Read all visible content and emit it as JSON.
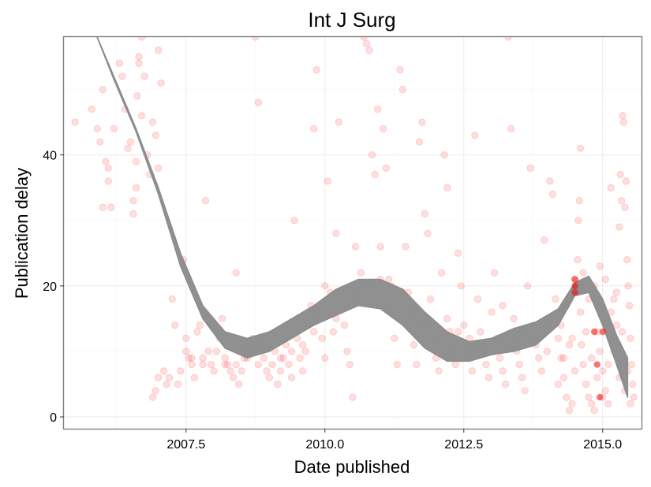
{
  "chart_data": {
    "type": "scatter",
    "title": "Int J Surg",
    "xlabel": "Date published",
    "ylabel": "Publication delay",
    "xlim": [
      2005.3,
      2015.7
    ],
    "ylim": [
      -1.8,
      58
    ],
    "x_ticks": [
      2007.5,
      2010.0,
      2012.5,
      2015.0
    ],
    "x_tick_labels": [
      "2007.5",
      "2010.0",
      "2012.5",
      "2015.0"
    ],
    "y_ticks": [
      0,
      20,
      40
    ],
    "y_tick_labels": [
      "0",
      "20",
      "40"
    ],
    "grid": true,
    "legend": "none",
    "point_color": "#ff0000",
    "point_alpha": 0.13,
    "ribbon_color": "#8c8c8c",
    "points": [
      [
        2005.5,
        45
      ],
      [
        2005.8,
        47
      ],
      [
        2005.9,
        44
      ],
      [
        2005.95,
        42
      ],
      [
        2006.0,
        50
      ],
      [
        2006.0,
        32
      ],
      [
        2006.05,
        39
      ],
      [
        2006.1,
        38
      ],
      [
        2006.1,
        36
      ],
      [
        2006.15,
        32
      ],
      [
        2006.2,
        44
      ],
      [
        2006.3,
        54
      ],
      [
        2006.35,
        52
      ],
      [
        2006.4,
        47
      ],
      [
        2006.45,
        41
      ],
      [
        2006.5,
        42
      ],
      [
        2006.55,
        33
      ],
      [
        2006.55,
        31
      ],
      [
        2006.6,
        35
      ],
      [
        2006.6,
        39
      ],
      [
        2006.62,
        49
      ],
      [
        2006.65,
        55
      ],
      [
        2006.65,
        54
      ],
      [
        2006.7,
        58
      ],
      [
        2006.7,
        46
      ],
      [
        2006.75,
        52
      ],
      [
        2006.8,
        40
      ],
      [
        2006.85,
        37
      ],
      [
        2006.9,
        45
      ],
      [
        2006.95,
        43
      ],
      [
        2007.0,
        38
      ],
      [
        2007.0,
        56
      ],
      [
        2007.05,
        51
      ],
      [
        2006.9,
        3
      ],
      [
        2006.95,
        4
      ],
      [
        2007.0,
        6
      ],
      [
        2007.1,
        7
      ],
      [
        2007.15,
        5
      ],
      [
        2007.2,
        6
      ],
      [
        2007.25,
        18
      ],
      [
        2007.3,
        14
      ],
      [
        2007.35,
        5
      ],
      [
        2007.4,
        7
      ],
      [
        2007.45,
        24
      ],
      [
        2007.5,
        10
      ],
      [
        2007.5,
        12
      ],
      [
        2007.55,
        9
      ],
      [
        2007.6,
        8
      ],
      [
        2007.65,
        6
      ],
      [
        2007.7,
        13
      ],
      [
        2007.75,
        14
      ],
      [
        2007.8,
        9
      ],
      [
        2007.85,
        33
      ],
      [
        2007.9,
        10
      ],
      [
        2007.95,
        8
      ],
      [
        2008.0,
        7
      ],
      [
        2008.05,
        10
      ],
      [
        2008.1,
        12
      ],
      [
        2008.15,
        15
      ],
      [
        2008.2,
        9
      ],
      [
        2008.25,
        8
      ],
      [
        2008.3,
        7
      ],
      [
        2008.35,
        6
      ],
      [
        2008.4,
        22
      ],
      [
        2008.45,
        5
      ],
      [
        2008.5,
        7
      ],
      [
        2008.55,
        9
      ],
      [
        2008.6,
        11
      ],
      [
        2008.65,
        10
      ],
      [
        2008.7,
        12
      ],
      [
        2008.75,
        58
      ],
      [
        2008.8,
        48
      ],
      [
        2008.85,
        11
      ],
      [
        2008.9,
        9
      ],
      [
        2008.95,
        7
      ],
      [
        2009.0,
        6
      ],
      [
        2009.05,
        8
      ],
      [
        2009.1,
        10
      ],
      [
        2009.15,
        5
      ],
      [
        2009.2,
        7
      ],
      [
        2009.25,
        9
      ],
      [
        2009.3,
        11
      ],
      [
        2009.35,
        8
      ],
      [
        2009.4,
        6
      ],
      [
        2009.45,
        30
      ],
      [
        2009.5,
        12
      ],
      [
        2009.55,
        9
      ],
      [
        2009.6,
        7
      ],
      [
        2009.65,
        10
      ],
      [
        2009.7,
        14
      ],
      [
        2009.75,
        17
      ],
      [
        2009.8,
        44
      ],
      [
        2009.85,
        53
      ],
      [
        2009.9,
        16
      ],
      [
        2009.95,
        12
      ],
      [
        2010.0,
        9
      ],
      [
        2010.0,
        20
      ],
      [
        2010.05,
        36
      ],
      [
        2010.1,
        19
      ],
      [
        2010.15,
        13
      ],
      [
        2010.2,
        28
      ],
      [
        2010.25,
        45
      ],
      [
        2010.3,
        19
      ],
      [
        2010.35,
        14
      ],
      [
        2010.4,
        10
      ],
      [
        2010.45,
        8
      ],
      [
        2010.5,
        3
      ],
      [
        2010.55,
        26
      ],
      [
        2010.6,
        18
      ],
      [
        2010.65,
        22
      ],
      [
        2010.7,
        58
      ],
      [
        2010.75,
        57
      ],
      [
        2010.8,
        56
      ],
      [
        2010.85,
        40
      ],
      [
        2010.9,
        37
      ],
      [
        2010.95,
        47
      ],
      [
        2011.0,
        26
      ],
      [
        2011.05,
        44
      ],
      [
        2011.1,
        38
      ],
      [
        2011.15,
        21
      ],
      [
        2011.2,
        16
      ],
      [
        2011.25,
        12
      ],
      [
        2011.3,
        8
      ],
      [
        2011.35,
        53
      ],
      [
        2011.4,
        50
      ],
      [
        2011.45,
        26
      ],
      [
        2011.5,
        19
      ],
      [
        2011.55,
        15
      ],
      [
        2011.6,
        11
      ],
      [
        2011.65,
        8
      ],
      [
        2011.7,
        42
      ],
      [
        2011.75,
        45
      ],
      [
        2011.8,
        31
      ],
      [
        2011.85,
        28
      ],
      [
        2011.9,
        18
      ],
      [
        2011.95,
        12
      ],
      [
        2012.0,
        9
      ],
      [
        2012.05,
        7
      ],
      [
        2012.1,
        22
      ],
      [
        2012.15,
        40
      ],
      [
        2012.2,
        35
      ],
      [
        2012.25,
        13
      ],
      [
        2012.3,
        10
      ],
      [
        2012.35,
        8
      ],
      [
        2012.4,
        25
      ],
      [
        2012.45,
        20
      ],
      [
        2012.5,
        14
      ],
      [
        2012.55,
        11
      ],
      [
        2012.6,
        9
      ],
      [
        2012.65,
        7
      ],
      [
        2012.7,
        43
      ],
      [
        2012.75,
        18
      ],
      [
        2012.8,
        13
      ],
      [
        2012.85,
        10
      ],
      [
        2012.9,
        8
      ],
      [
        2012.95,
        6
      ],
      [
        2013.0,
        16
      ],
      [
        2013.05,
        22
      ],
      [
        2013.1,
        12
      ],
      [
        2013.15,
        9
      ],
      [
        2013.2,
        7
      ],
      [
        2013.25,
        5
      ],
      [
        2013.3,
        58
      ],
      [
        2013.35,
        44
      ],
      [
        2013.4,
        12
      ],
      [
        2013.45,
        10
      ],
      [
        2013.5,
        8
      ],
      [
        2013.55,
        6
      ],
      [
        2013.6,
        4
      ],
      [
        2013.65,
        20
      ],
      [
        2013.7,
        38
      ],
      [
        2013.75,
        14
      ],
      [
        2013.8,
        11
      ],
      [
        2013.85,
        9
      ],
      [
        2013.9,
        7
      ],
      [
        2013.95,
        27
      ],
      [
        2014.0,
        15
      ],
      [
        2014.05,
        36
      ],
      [
        2014.1,
        34
      ],
      [
        2014.15,
        18
      ],
      [
        2014.2,
        12
      ],
      [
        2014.25,
        9
      ],
      [
        2014.3,
        6
      ],
      [
        2014.35,
        3
      ],
      [
        2014.4,
        1
      ],
      [
        2014.45,
        2
      ],
      [
        2014.5,
        21
      ],
      [
        2014.52,
        20
      ],
      [
        2014.54,
        19
      ],
      [
        2014.56,
        30
      ],
      [
        2014.58,
        33
      ],
      [
        2014.6,
        41
      ],
      [
        2014.62,
        11
      ],
      [
        2014.65,
        8
      ],
      [
        2014.7,
        5
      ],
      [
        2014.75,
        3
      ],
      [
        2014.8,
        2
      ],
      [
        2014.85,
        1
      ],
      [
        2014.9,
        13
      ],
      [
        2014.95,
        10
      ],
      [
        2015.0,
        7
      ],
      [
        2015.05,
        4
      ],
      [
        2015.1,
        2
      ],
      [
        2015.15,
        35
      ],
      [
        2015.2,
        18
      ],
      [
        2015.25,
        14
      ],
      [
        2015.3,
        29
      ],
      [
        2015.32,
        37
      ],
      [
        2015.34,
        33
      ],
      [
        2015.36,
        46
      ],
      [
        2015.38,
        45
      ],
      [
        2015.4,
        32
      ],
      [
        2015.42,
        36
      ],
      [
        2015.44,
        24
      ],
      [
        2015.46,
        20
      ],
      [
        2015.48,
        17
      ],
      [
        2015.5,
        12
      ],
      [
        2015.52,
        8
      ],
      [
        2015.54,
        5
      ],
      [
        2015.56,
        3
      ],
      [
        2014.2,
        5
      ],
      [
        2014.3,
        9
      ],
      [
        2014.4,
        11
      ],
      [
        2014.5,
        7
      ],
      [
        2014.6,
        16
      ],
      [
        2014.7,
        13
      ],
      [
        2014.8,
        9
      ],
      [
        2014.9,
        6
      ],
      [
        2015.0,
        3
      ],
      [
        2015.1,
        8
      ],
      [
        2015.2,
        10
      ],
      [
        2015.3,
        6
      ],
      [
        2015.4,
        4
      ],
      [
        2015.45,
        7
      ],
      [
        2015.5,
        2
      ],
      [
        2014.25,
        14
      ],
      [
        2014.35,
        17
      ],
      [
        2014.45,
        12
      ],
      [
        2014.55,
        24
      ],
      [
        2014.65,
        22
      ],
      [
        2014.75,
        18
      ],
      [
        2014.85,
        20
      ],
      [
        2014.95,
        23
      ],
      [
        2015.05,
        21
      ],
      [
        2015.15,
        16
      ],
      [
        2015.25,
        19
      ],
      [
        2015.35,
        13
      ],
      [
        2013.2,
        17
      ],
      [
        2013.4,
        15
      ],
      [
        2013.6,
        13
      ],
      [
        2013.8,
        12
      ],
      [
        2014.0,
        10
      ],
      [
        2012.8,
        11
      ],
      [
        2012.6,
        12
      ],
      [
        2012.4,
        13
      ],
      [
        2012.2,
        15
      ],
      [
        2011.8,
        14
      ],
      [
        2011.6,
        16
      ],
      [
        2011.4,
        19
      ],
      [
        2011.2,
        20
      ],
      [
        2011.0,
        21
      ],
      [
        2010.8,
        20
      ],
      [
        2010.6,
        19
      ],
      [
        2010.4,
        17
      ],
      [
        2010.2,
        15
      ],
      [
        2009.8,
        13
      ],
      [
        2009.6,
        11
      ],
      [
        2009.4,
        10
      ],
      [
        2009.2,
        9
      ],
      [
        2008.8,
        8
      ],
      [
        2008.6,
        9
      ],
      [
        2008.4,
        8
      ],
      [
        2008.2,
        8
      ],
      [
        2007.8,
        8
      ],
      [
        2007.6,
        9
      ]
    ],
    "highlight_points": [
      [
        2014.5,
        21
      ],
      [
        2014.5,
        20
      ],
      [
        2014.5,
        19
      ],
      [
        2014.85,
        13
      ],
      [
        2014.95,
        3
      ],
      [
        2015.0,
        13
      ],
      [
        2014.9,
        8
      ]
    ],
    "smooth_band": {
      "x": [
        2005.85,
        2006.2,
        2006.6,
        2007.0,
        2007.4,
        2007.8,
        2008.2,
        2008.6,
        2009.0,
        2009.4,
        2009.8,
        2010.2,
        2010.6,
        2011.0,
        2011.4,
        2011.8,
        2012.2,
        2012.6,
        2013.0,
        2013.4,
        2013.8,
        2014.2,
        2014.5,
        2014.75,
        2015.0,
        2015.25,
        2015.45
      ],
      "upper": [
        59,
        52,
        44,
        35,
        25,
        17,
        13,
        12,
        13,
        15,
        17,
        19.5,
        21,
        21,
        19.5,
        16,
        13,
        11.5,
        12,
        13.5,
        14.5,
        16.5,
        20.5,
        21.5,
        18,
        12.5,
        9
      ],
      "lower": [
        59,
        51.5,
        43.5,
        34,
        23,
        15,
        10.5,
        9,
        10,
        12,
        14,
        15.5,
        17,
        16.5,
        14,
        10.5,
        8.5,
        8.5,
        9.5,
        10,
        11,
        14,
        18.5,
        19,
        14,
        8,
        3
      ]
    }
  }
}
